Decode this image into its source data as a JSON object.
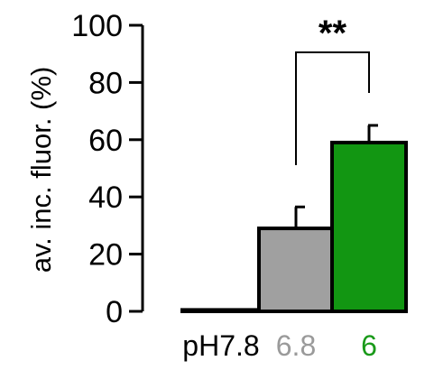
{
  "chart_data": {
    "type": "bar",
    "ylabel": "av. inc. fluor. (%)",
    "ylim": [
      0,
      100
    ],
    "yticks": [
      0,
      20,
      40,
      60,
      80,
      100
    ],
    "tick_labels": [
      "0",
      "20",
      "40",
      "60",
      "80",
      "100"
    ],
    "categories": [
      "pH7.8",
      "6.8",
      "6"
    ],
    "values": [
      0.5,
      29,
      59
    ],
    "errors": [
      0,
      7.5,
      6
    ],
    "bar_colors": [
      "#202020",
      "#a0a0a0",
      "#129612"
    ],
    "label_colors": [
      "#000000",
      "#9a9a9a",
      "#1a9a1a"
    ],
    "significance": {
      "label": "**",
      "between": [
        1,
        2
      ]
    }
  }
}
